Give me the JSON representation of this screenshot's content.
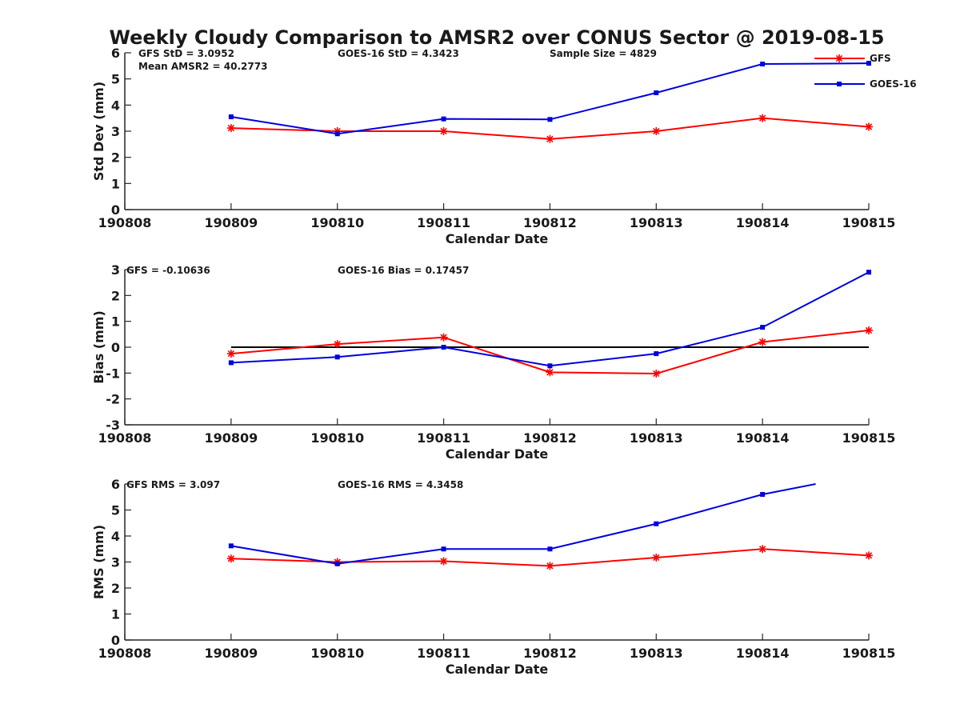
{
  "chart_data": {
    "title": "Weekly Cloudy Comparison to AMSR2 over CONUS Sector @ 2019-08-15",
    "type": "line",
    "categories": [
      "190808",
      "190809",
      "190810",
      "190811",
      "190812",
      "190813",
      "190814",
      "190815"
    ],
    "colors": {
      "GFS": "#ff0000",
      "GOES-16": "#0000dd",
      "zero_line": "#000000"
    },
    "legend": {
      "placement": "top-right",
      "entries": [
        "GFS",
        "GOES-16"
      ]
    },
    "panels": [
      {
        "id": "std",
        "ylabel": "Std Dev (mm)",
        "xlabel": "Calendar Date",
        "ylim": [
          0,
          6
        ],
        "yticks": [
          "0",
          "1",
          "2",
          "3",
          "4",
          "5",
          "6"
        ],
        "annotations": {
          "gfs": "GFS StD = 3.0952",
          "goes": "GOES-16 StD = 4.3423",
          "sample": "Sample Size = 4829",
          "mean": "Mean AMSR2 = 40.2773"
        },
        "series": [
          {
            "name": "GFS",
            "x": [
              "190809",
              "190810",
              "190811",
              "190812",
              "190813",
              "190814",
              "190815"
            ],
            "values": [
              3.12,
              3.0,
              3.0,
              2.7,
              3.0,
              3.5,
              3.17
            ]
          },
          {
            "name": "GOES-16",
            "x": [
              "190809",
              "190810",
              "190811",
              "190812",
              "190813",
              "190814",
              "190815"
            ],
            "values": [
              3.55,
              2.9,
              3.47,
              3.45,
              4.47,
              5.57,
              5.6
            ]
          }
        ]
      },
      {
        "id": "bias",
        "ylabel": "Bias (mm)",
        "xlabel": "Calendar Date",
        "ylim": [
          -3,
          3
        ],
        "yticks": [
          "-3",
          "-2",
          "-1",
          "0",
          "1",
          "2",
          "3"
        ],
        "zero_line": true,
        "annotations": {
          "gfs": "GFS = -0.10636",
          "goes": "GOES-16 Bias  = 0.17457"
        },
        "series": [
          {
            "name": "GFS",
            "x": [
              "190809",
              "190810",
              "190811",
              "190812",
              "190813",
              "190814",
              "190815"
            ],
            "values": [
              -0.25,
              0.12,
              0.38,
              -0.97,
              -1.02,
              0.2,
              0.65
            ]
          },
          {
            "name": "GOES-16",
            "x": [
              "190809",
              "190810",
              "190811",
              "190812",
              "190813",
              "190814",
              "190815"
            ],
            "values": [
              -0.6,
              -0.38,
              0.0,
              -0.72,
              -0.25,
              0.77,
              2.9
            ]
          }
        ]
      },
      {
        "id": "rms",
        "ylabel": "RMS (mm)",
        "xlabel": "Calendar Date",
        "ylim": [
          0,
          6
        ],
        "yticks": [
          "0",
          "1",
          "2",
          "3",
          "4",
          "5",
          "6"
        ],
        "annotations": {
          "gfs": "GFS RMS = 3.097",
          "goes": "GOES-16 RMS = 4.3458"
        },
        "series": [
          {
            "name": "GFS",
            "x": [
              "190809",
              "190810",
              "190811",
              "190812",
              "190813",
              "190814",
              "190815"
            ],
            "values": [
              3.13,
              3.0,
              3.03,
              2.85,
              3.17,
              3.5,
              3.25
            ]
          },
          {
            "name": "GOES-16",
            "x": [
              "190809",
              "190810",
              "190811",
              "190812",
              "190813",
              "190814"
            ],
            "values": [
              3.62,
              2.93,
              3.5,
              3.5,
              4.47,
              5.6
            ],
            "tail": {
              "x": 6.5,
              "value": 6.0
            }
          }
        ]
      }
    ]
  }
}
